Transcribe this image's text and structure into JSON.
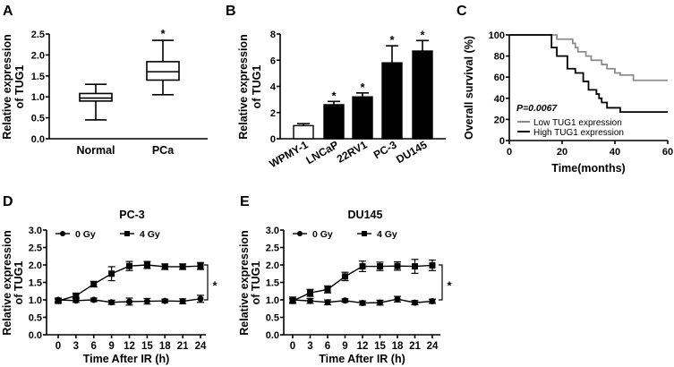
{
  "chart_data": [
    {
      "panel": "A",
      "type": "box",
      "ylabel": [
        "Relative expression",
        "of TUG1"
      ],
      "ylim": [
        0,
        2.5
      ],
      "yticks": [
        "0.0",
        "0.5",
        "1.0",
        "1.5",
        "2.0",
        "2.5"
      ],
      "categories": [
        "Normal",
        "PCa"
      ],
      "boxes": [
        {
          "min": 0.45,
          "q1": 0.9,
          "median": 0.97,
          "q3": 1.08,
          "max": 1.3,
          "sig": ""
        },
        {
          "min": 1.05,
          "q1": 1.4,
          "median": 1.6,
          "q3": 1.84,
          "max": 2.35,
          "sig": "*"
        }
      ]
    },
    {
      "panel": "B",
      "type": "bar",
      "ylabel": [
        "Relative expression",
        "of TUG1"
      ],
      "ylim": [
        0,
        8
      ],
      "yticks": [
        "0",
        "2",
        "4",
        "6",
        "8"
      ],
      "categories": [
        "WPMY-1",
        "LNCaP",
        "22RV1",
        "PC-3",
        "DU145"
      ],
      "values": [
        1.0,
        2.6,
        3.2,
        5.8,
        6.7
      ],
      "errors": [
        0.15,
        0.25,
        0.3,
        1.3,
        0.8
      ],
      "fills": [
        "#ffffff",
        "#000000",
        "#000000",
        "#000000",
        "#000000"
      ],
      "sig": [
        "",
        "*",
        "*",
        "*",
        "*"
      ]
    },
    {
      "panel": "C",
      "type": "line",
      "xlabel": "Time(months)",
      "ylabel": [
        "Overall survival (%)"
      ],
      "xlim": [
        0,
        60
      ],
      "xticks": [
        "0",
        "20",
        "40",
        "60"
      ],
      "ylim": [
        0,
        100
      ],
      "yticks": [
        "0",
        "20",
        "40",
        "60",
        "80",
        "100"
      ],
      "annotation": "P=0.0067",
      "series": [
        {
          "name": "Low TUG1 expression",
          "color": "#8c8c8c",
          "x": [
            0,
            18,
            24,
            25,
            26,
            29,
            31,
            35,
            37,
            40,
            42,
            47,
            60
          ],
          "y": [
            100,
            96,
            92,
            88,
            84,
            80,
            76,
            72,
            68,
            64,
            62,
            57,
            57
          ]
        },
        {
          "name": "High TUG1 expression",
          "color": "#000000",
          "x": [
            0,
            16,
            18,
            22,
            25,
            28,
            30,
            33,
            34,
            35,
            37,
            42,
            60
          ],
          "y": [
            100,
            88,
            80,
            68,
            64,
            56,
            48,
            44,
            40,
            36,
            31,
            27,
            27
          ]
        }
      ]
    },
    {
      "panel": "D",
      "type": "line",
      "title": "PC-3",
      "xlabel": "Time After IR (h)",
      "ylabel": [
        "Relative expression",
        "of TUG1"
      ],
      "xlim": [
        0,
        24
      ],
      "xticks": [
        "0",
        "3",
        "6",
        "9",
        "12",
        "15",
        "18",
        "21",
        "24"
      ],
      "ylim": [
        0,
        3
      ],
      "yticks": [
        "0.0",
        "0.5",
        "1.0",
        "1.5",
        "2.0",
        "2.5",
        "3.0"
      ],
      "sig": "*",
      "series": [
        {
          "name": "0 Gy",
          "marker": "circle",
          "x": [
            0,
            3,
            6,
            9,
            12,
            15,
            18,
            21,
            24
          ],
          "y": [
            1.0,
            0.98,
            1.0,
            0.93,
            0.95,
            0.96,
            0.97,
            0.96,
            1.03
          ],
          "err": [
            0.05,
            0.05,
            0.05,
            0.06,
            0.1,
            0.08,
            0.05,
            0.07,
            0.1
          ]
        },
        {
          "name": "4 Gy",
          "marker": "square",
          "x": [
            0,
            3,
            6,
            9,
            12,
            15,
            18,
            21,
            24
          ],
          "y": [
            0.97,
            1.12,
            1.45,
            1.75,
            1.97,
            2.0,
            1.95,
            1.95,
            1.97
          ],
          "err": [
            0.06,
            0.06,
            0.08,
            0.2,
            0.13,
            0.1,
            0.08,
            0.08,
            0.1
          ]
        }
      ]
    },
    {
      "panel": "E",
      "type": "line",
      "title": "DU145",
      "xlabel": "Time After IR (h)",
      "ylabel": [
        "Relative expression",
        "of TUG1"
      ],
      "xlim": [
        0,
        24
      ],
      "xticks": [
        "0",
        "3",
        "6",
        "9",
        "12",
        "15",
        "18",
        "21",
        "24"
      ],
      "ylim": [
        0,
        3
      ],
      "yticks": [
        "0.0",
        "0.5",
        "1.0",
        "1.5",
        "2.0",
        "2.5",
        "3.0"
      ],
      "sig": "*",
      "series": [
        {
          "name": "0 Gy",
          "marker": "circle",
          "x": [
            0,
            3,
            6,
            9,
            12,
            15,
            18,
            21,
            24
          ],
          "y": [
            1.0,
            0.97,
            0.93,
            0.98,
            0.91,
            0.92,
            1.02,
            0.92,
            0.96
          ],
          "err": [
            0.08,
            0.07,
            0.07,
            0.05,
            0.06,
            0.07,
            0.08,
            0.06,
            0.06
          ]
        },
        {
          "name": "4 Gy",
          "marker": "square",
          "x": [
            0,
            3,
            6,
            9,
            12,
            15,
            18,
            21,
            24
          ],
          "y": [
            0.97,
            1.2,
            1.3,
            1.67,
            1.96,
            1.96,
            1.97,
            1.96,
            1.99
          ],
          "err": [
            0.06,
            0.1,
            0.1,
            0.12,
            0.15,
            0.12,
            0.12,
            0.2,
            0.15
          ]
        }
      ]
    }
  ]
}
